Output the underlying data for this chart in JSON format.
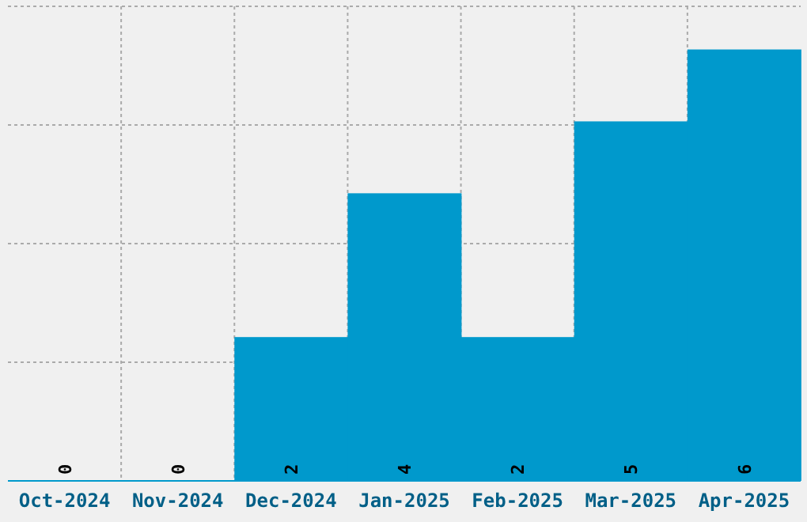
{
  "chart_data": {
    "type": "bar",
    "categories": [
      "Oct-2024",
      "Nov-2024",
      "Dec-2024",
      "Jan-2025",
      "Feb-2025",
      "Mar-2025",
      "Apr-2025"
    ],
    "values": [
      0,
      0,
      2,
      4,
      2,
      5,
      6
    ],
    "color": "#0099cc",
    "ylim": [
      0,
      6.6
    ],
    "yticks": [
      {
        "value": 0,
        "label": null
      },
      {
        "value": 1.65,
        "label": null
      },
      {
        "value": 3.3,
        "label": null
      },
      {
        "value": 4.95,
        "label": null
      },
      {
        "value": 6.6,
        "label": null
      }
    ],
    "grid": true,
    "data_labels": true,
    "tick_labels": "x"
  }
}
